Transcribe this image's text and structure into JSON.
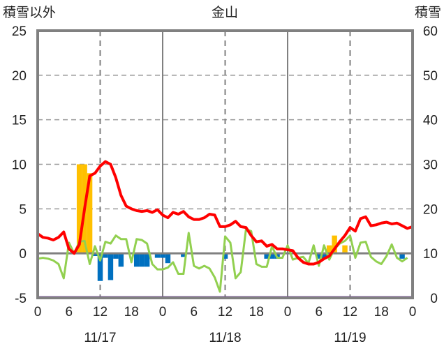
{
  "chart_data": {
    "type": "bar+line",
    "title": "金山",
    "ylabel_left": "積雪以外",
    "ylabel_right": "積雪",
    "ylim_left": [
      -5,
      25
    ],
    "ylim_right": [
      0,
      60
    ],
    "yticks_left": [
      "-5",
      "0",
      "5",
      "10",
      "15",
      "20",
      "25"
    ],
    "yticks_right": [
      "0",
      "10",
      "20",
      "30",
      "40",
      "50",
      "60"
    ],
    "xticks": [
      "0",
      "6",
      "12",
      "18",
      "0",
      "6",
      "12",
      "18",
      "0",
      "6",
      "12",
      "18",
      "0"
    ],
    "dates": [
      "11/17",
      "11/18",
      "11/19"
    ],
    "hours": 72,
    "colors": {
      "snow_increase": "#FFC000",
      "snow_decrease": "#0070C0",
      "red_series": "#FF0000",
      "green_series": "#92D050",
      "snow_depth": "#7030A0",
      "axis": "#808080"
    },
    "bars": {
      "8": 10,
      "9": 10,
      "10": 9,
      "11": -0.3,
      "12": -3.1,
      "13": -0.5,
      "14": -3.0,
      "15": -0.6,
      "16": -1.5,
      "19": -1.5,
      "20": -1.5,
      "21": -1.5,
      "23": -0.5,
      "24": -0.5,
      "25": -1.1,
      "28": -0.4,
      "36": -0.6,
      "44": -0.6,
      "45": -0.6,
      "46": -0.6,
      "54": -0.6,
      "55": -0.6,
      "56": 0.9,
      "57": 2.0,
      "59": 0.9,
      "70": -0.6
    },
    "red_series": [
      2.2,
      1.8,
      1.7,
      1.5,
      1.8,
      2.4,
      0.5,
      0.0,
      1.0,
      5.0,
      8.7,
      9.0,
      9.8,
      10.3,
      10.0,
      8.5,
      6.5,
      5.3,
      5.0,
      4.8,
      4.7,
      4.8,
      4.6,
      4.9,
      4.3,
      4.0,
      4.6,
      4.4,
      4.7,
      4.1,
      3.8,
      3.8,
      4.0,
      4.4,
      4.3,
      3.0,
      3.0,
      3.2,
      3.6,
      3.0,
      2.9,
      2.0,
      1.3,
      1.4,
      0.8,
      1.0,
      0.5,
      0.5,
      0.4,
      0.3,
      -0.5,
      -1.0,
      -1.2,
      -1.2,
      -1.0,
      -0.6,
      -0.3,
      0.5,
      1.3,
      2.0,
      2.9,
      2.5,
      3.9,
      4.1,
      3.1,
      3.2,
      3.4,
      3.5,
      3.3,
      3.4,
      3.1,
      2.8,
      3.0
    ],
    "green_series": [
      -0.6,
      -0.5,
      -0.6,
      -0.8,
      -1.2,
      -2.8,
      1.2,
      0.0,
      1.3,
      1.4,
      -1.2,
      0.8,
      -0.8,
      1.3,
      1.1,
      2.0,
      1.6,
      1.6,
      -1.0,
      1.6,
      1.5,
      1.1,
      -1.2,
      -1.8,
      -1.8,
      -1.6,
      -1.0,
      -2.3,
      -2.3,
      2.3,
      -1.4,
      -1.7,
      -1.4,
      -1.7,
      -2.7,
      -4.3,
      1.9,
      1.2,
      -2.8,
      -2.1,
      2.7,
      2.5,
      -1.2,
      -1.5,
      -1.5,
      0.8,
      -0.5,
      -0.5,
      0.9,
      -0.7,
      -0.5,
      -0.4,
      -1.1,
      0.9,
      -1.4,
      0.9,
      -0.7,
      0.5,
      1.1,
      1.4,
      2.0,
      -0.5,
      1.2,
      1.3,
      -0.4,
      -0.9,
      -1.2,
      -0.3,
      1.0,
      -0.5,
      -0.9,
      -0.5
    ],
    "snow_depth_series_right": [
      0,
      0
    ]
  }
}
